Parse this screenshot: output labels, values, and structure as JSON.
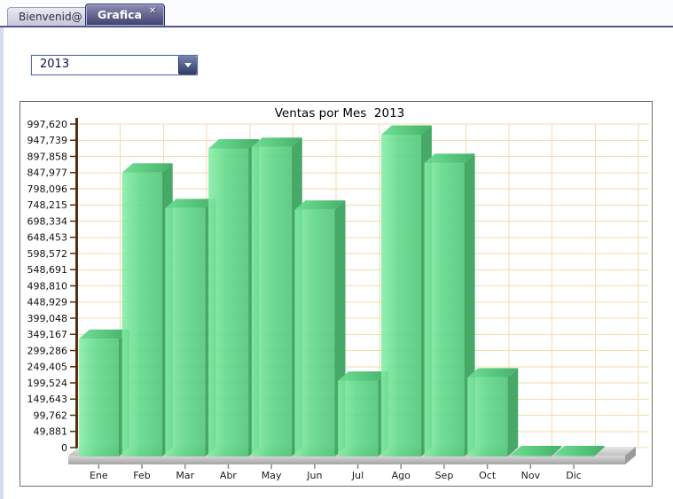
{
  "tab_bar": {
    "tabs": [
      {
        "label": "Bienvenid@",
        "state": "inactive"
      },
      {
        "label": "Grafica",
        "state": "active",
        "close_icon": "✕"
      }
    ]
  },
  "year_selector": {
    "value": "2013"
  },
  "chart_data": {
    "type": "bar",
    "title": "Ventas por Mes  2013",
    "xlabel": "",
    "ylabel": "",
    "categories": [
      "Ene",
      "Feb",
      "Mar",
      "Abr",
      "May",
      "Jun",
      "Jul",
      "Ago",
      "Sep",
      "Oct",
      "Nov",
      "Dic"
    ],
    "values": [
      365000,
      880000,
      770000,
      955000,
      960000,
      765000,
      235000,
      997620,
      910000,
      245000,
      4000,
      4000
    ],
    "ylim": [
      0,
      997620
    ],
    "y_tick_step": 49881,
    "y_ticks": [
      0,
      49881,
      99762,
      149643,
      199524,
      249405,
      299286,
      349167,
      399048,
      448929,
      498810,
      548691,
      598572,
      648453,
      698334,
      748215,
      798096,
      847977,
      897858,
      947739,
      997620
    ],
    "y_tick_labels": [
      "0",
      "49,881",
      "99,762",
      "149,643",
      "199,524",
      "249,405",
      "299,286",
      "349,167",
      "399,048",
      "448,929",
      "498,810",
      "548,691",
      "598,572",
      "648,453",
      "698,334",
      "748,215",
      "798,096",
      "847,977",
      "897,858",
      "947,739",
      "997,620"
    ],
    "grid": true,
    "legend": null,
    "style_3d": true,
    "bar_color": "#55cb7d",
    "bar_side_color": "#38a35d",
    "grid_color": "#f3ddab",
    "axis_color": "#5a2d0d",
    "floor_color": "#c6c6c6",
    "tick_color": "#8a8a8a",
    "label_color": "#1a1a1a",
    "background": "#ffffff"
  }
}
